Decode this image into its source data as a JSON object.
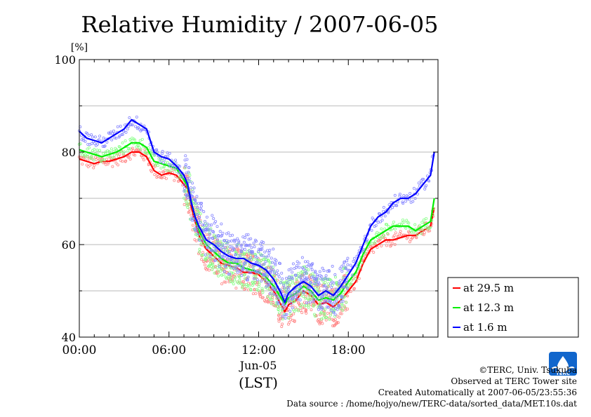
{
  "chart_data": {
    "type": "line",
    "title": "Relative Humidity / 2007-06-05",
    "ylabel": "[%]",
    "xlabel": "(LST)",
    "date_label": "Jun-05",
    "ylim": [
      40,
      100
    ],
    "yticks": [
      "40",
      "60",
      "80",
      "100"
    ],
    "xlim_hours": [
      0,
      24
    ],
    "xticks": [
      "00:00",
      "06:00",
      "12:00",
      "18:00"
    ],
    "grid": true,
    "legend_position": "lower-right outside",
    "x_hours": [
      0,
      0.5,
      1,
      1.5,
      2,
      2.5,
      3,
      3.5,
      4,
      4.5,
      5,
      5.5,
      6,
      6.5,
      7,
      7.25,
      7.5,
      7.75,
      8,
      8.5,
      9,
      9.5,
      10,
      10.5,
      11,
      11.5,
      12,
      12.5,
      13,
      13.5,
      13.75,
      14,
      14.5,
      15,
      15.5,
      16,
      16.5,
      17,
      17.5,
      18,
      18.5,
      19,
      19.5,
      20,
      20.5,
      21,
      21.5,
      22,
      22.5,
      23,
      23.5,
      23.75
    ],
    "series": [
      {
        "name": "at 29.5 m",
        "color": "#ff0000",
        "values": [
          78.5,
          78,
          77.5,
          78,
          78,
          78.5,
          79,
          80,
          80,
          79,
          76,
          75,
          75.5,
          75,
          73,
          72,
          68,
          65,
          62,
          59,
          57.5,
          56,
          55.5,
          55,
          54,
          54,
          53.5,
          52,
          50,
          47,
          45.5,
          47,
          48,
          50,
          49,
          47,
          47.5,
          46.5,
          48,
          50,
          52,
          56,
          59,
          60,
          61,
          61,
          61.5,
          62,
          62,
          63,
          64,
          68
        ]
      },
      {
        "name": "at 12.3 m",
        "color": "#00ee00",
        "values": [
          80.5,
          80,
          79.5,
          79,
          79.5,
          80,
          81,
          82,
          82,
          81,
          78,
          77.5,
          77,
          76.5,
          74,
          72.5,
          69,
          66,
          63,
          60,
          58.5,
          57,
          56,
          56,
          55,
          54.5,
          54,
          53,
          51,
          48.5,
          47,
          48.5,
          49.5,
          51,
          50,
          48,
          48.5,
          48,
          49.5,
          52,
          54,
          58,
          61,
          62,
          63,
          64,
          64,
          64,
          63,
          64,
          65,
          70
        ]
      },
      {
        "name": "at 1.6 m",
        "color": "#0000ff",
        "values": [
          84.5,
          83,
          82.5,
          82,
          83,
          84,
          85,
          87,
          86,
          85,
          80,
          79,
          78.5,
          77,
          75,
          73,
          69,
          66,
          64,
          61,
          60,
          58.5,
          57.5,
          57,
          57,
          56,
          55.5,
          54.5,
          52.5,
          49.5,
          47.5,
          49.5,
          51,
          52,
          51,
          49,
          50,
          49,
          51,
          53.5,
          56,
          60,
          64,
          66,
          67,
          69,
          70,
          70,
          71,
          73,
          75,
          80
        ]
      }
    ]
  },
  "footer": {
    "copyright": "©TERC, Univ. Tsukuba",
    "observed": "Observed at TERC Tower site",
    "created": "Created Automatically at 2007-06-05/23:55:36",
    "source": "Data source : /home/hojyo/new/TERC-data/sorted_data/MET.10s.dat",
    "logo_text": "TERC"
  }
}
